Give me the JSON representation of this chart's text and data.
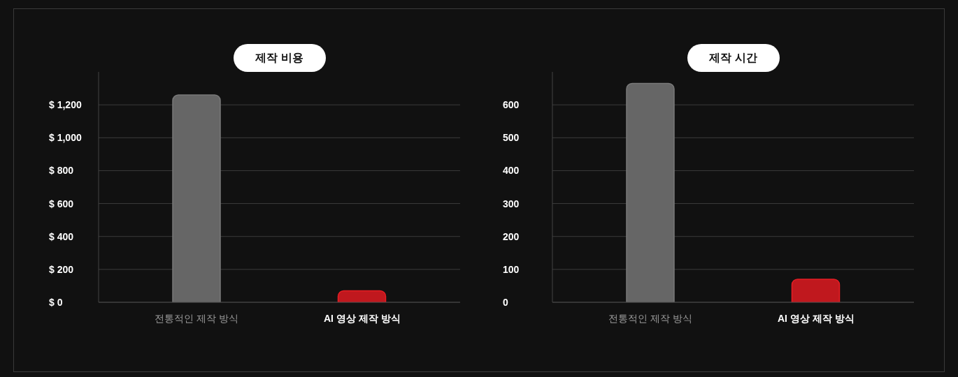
{
  "chart_data": [
    {
      "type": "bar",
      "title": "제작 비용",
      "categories": [
        "전통적인 제작 방식",
        "AI 영상 제작 방식"
      ],
      "values": [
        1260,
        70
      ],
      "colors": [
        "#666666",
        "#c0181e"
      ],
      "ylim": [
        0,
        1400
      ],
      "yticks": [
        {
          "value": 0,
          "label": "$ 0"
        },
        {
          "value": 200,
          "label": "$ 200"
        },
        {
          "value": 400,
          "label": "$ 400"
        },
        {
          "value": 600,
          "label": "$ 600"
        },
        {
          "value": 800,
          "label": "$ 800"
        },
        {
          "value": 1000,
          "label": "$ 1,000"
        },
        {
          "value": 1200,
          "label": "$ 1,200"
        }
      ],
      "grid": "y"
    },
    {
      "type": "bar",
      "title": "제작 시간",
      "categories": [
        "전통적인 제작 방식",
        "AI 영상 제작 방식"
      ],
      "values": [
        665,
        70
      ],
      "colors": [
        "#666666",
        "#c0181e"
      ],
      "ylim": [
        0,
        700
      ],
      "yticks": [
        0,
        100,
        200,
        300,
        400,
        500,
        600
      ],
      "grid": "y"
    }
  ]
}
